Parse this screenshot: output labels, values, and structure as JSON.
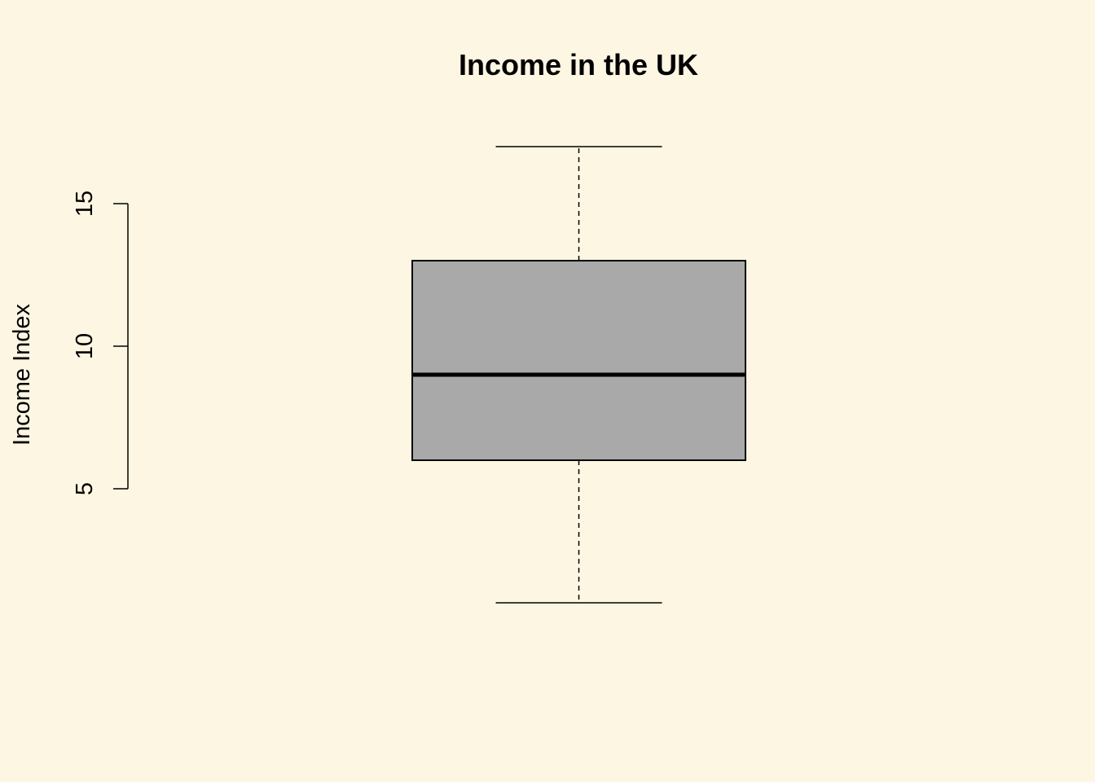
{
  "colors": {
    "background": "#FDF6E3",
    "box_fill": "#A9A9A9",
    "stroke": "#000000"
  },
  "chart_data": {
    "type": "boxplot",
    "title": "Income in the UK",
    "ylabel": "Income Index",
    "xlabel": "",
    "ylim": [
      1,
      17
    ],
    "yticks": [
      5,
      10,
      15
    ],
    "ytick_labels": [
      "5",
      "10",
      "15"
    ],
    "grid": false,
    "boxes": [
      {
        "min": 1,
        "q1": 6,
        "median": 9,
        "q3": 13,
        "max": 17
      }
    ]
  }
}
